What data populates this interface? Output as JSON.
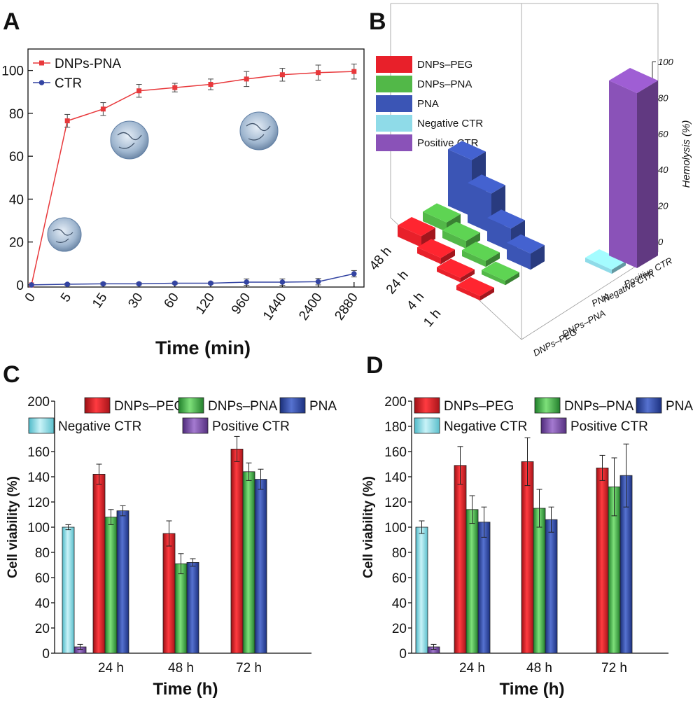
{
  "panels": {
    "A": "A",
    "B": "B",
    "C": "C",
    "D": "D"
  },
  "chart_data": [
    {
      "panel": "A",
      "type": "line",
      "title": "",
      "xlabel": "Time (min)",
      "ylabel": "",
      "x": [
        "0",
        "5",
        "15",
        "30",
        "60",
        "120",
        "960",
        "1440",
        "2400",
        "2880"
      ],
      "ylim": [
        0,
        110
      ],
      "yticks": [
        0,
        20,
        40,
        60,
        80,
        100
      ],
      "legend_position": "top-left",
      "series": [
        {
          "name": "DNPs-PNA",
          "color": "#e8383b",
          "values": [
            0,
            76.5,
            82,
            90.5,
            92,
            93.5,
            96,
            98,
            99,
            99.5
          ],
          "errors": [
            0,
            3,
            3,
            3,
            2,
            2.5,
            3.5,
            3,
            3.5,
            3.5
          ]
        },
        {
          "name": "CTR",
          "color": "#3344a2",
          "values": [
            0,
            0.3,
            0.5,
            0.5,
            0.8,
            0.8,
            1.3,
            1.3,
            1.5,
            5.2
          ],
          "errors": [
            0,
            0.5,
            0.5,
            0.5,
            0.5,
            0.5,
            1.5,
            1.5,
            1.5,
            1.5
          ]
        }
      ]
    },
    {
      "panel": "B",
      "type": "bar3d",
      "title": "",
      "zlabel": "Hemolysis (%)",
      "zlim": [
        0,
        100
      ],
      "zticks": [
        0,
        20,
        40,
        60,
        80,
        100
      ],
      "time_labels": [
        "48 h",
        "24 h",
        "4 h",
        "1 h"
      ],
      "sample_labels": [
        "DNPs–PEG",
        "DNPs–PNA",
        "PNA",
        "Negative CTR",
        "Positive CTR"
      ],
      "legend": [
        {
          "name": "DNPs–PEG",
          "color": "#e8202a"
        },
        {
          "name": "DNPs–PNA",
          "color": "#52b848"
        },
        {
          "name": "PNA",
          "color": "#3b55b5"
        },
        {
          "name": "Negative CTR",
          "color": "#8fdbe8"
        },
        {
          "name": "Positive CTR",
          "color": "#8a52b8"
        }
      ],
      "series": [
        {
          "name": "DNPs–PEG",
          "values_by_time": {
            "48 h": 5,
            "24 h": 2,
            "4 h": 1,
            "1 h": 1
          }
        },
        {
          "name": "DNPs–PNA",
          "values_by_time": {
            "48 h": 4,
            "24 h": 3,
            "4 h": 2,
            "1 h": 1
          }
        },
        {
          "name": "PNA",
          "values_by_time": {
            "48 h": 32,
            "24 h": 22,
            "4 h": 12,
            "1 h": 8
          }
        },
        {
          "name": "Negative CTR",
          "value": 1
        },
        {
          "name": "Positive CTR",
          "value": 100
        }
      ]
    },
    {
      "panel": "C",
      "type": "bar",
      "title": "",
      "xlabel": "Time (h)",
      "ylabel": "Cell viability (%)",
      "ylim": [
        0,
        200
      ],
      "yticks": [
        0,
        20,
        40,
        60,
        80,
        100,
        120,
        140,
        160,
        180,
        200
      ],
      "categories": [
        "24 h",
        "48 h",
        "72 h"
      ],
      "controls": [
        {
          "name": "Negative CTR",
          "color": "#7fd3df",
          "value": 100,
          "error": 2
        },
        {
          "name": "Positive CTR",
          "color": "#7b4fae",
          "value": 5,
          "error": 2
        }
      ],
      "series": [
        {
          "name": "DNPs–PEG",
          "color": "#e41e26",
          "values": [
            142,
            95,
            162
          ],
          "errors": [
            8,
            10,
            10
          ]
        },
        {
          "name": "DNPs–PNA",
          "color": "#3fb04a",
          "values": [
            108,
            71,
            144
          ],
          "errors": [
            6,
            8,
            7
          ]
        },
        {
          "name": "PNA",
          "color": "#2e4aa6",
          "values": [
            113,
            72,
            138
          ],
          "errors": [
            4,
            3,
            8
          ]
        }
      ]
    },
    {
      "panel": "D",
      "type": "bar",
      "title": "",
      "xlabel": "Time (h)",
      "ylabel": "Cell viability (%)",
      "ylim": [
        0,
        200
      ],
      "yticks": [
        0,
        20,
        40,
        60,
        80,
        100,
        120,
        140,
        160,
        180,
        200
      ],
      "categories": [
        "24 h",
        "48 h",
        "72 h"
      ],
      "controls": [
        {
          "name": "Negative CTR",
          "color": "#7fd3df",
          "value": 100,
          "error": 5
        },
        {
          "name": "Positive CTR",
          "color": "#7b4fae",
          "value": 5,
          "error": 2
        }
      ],
      "series": [
        {
          "name": "DNPs–PEG",
          "color": "#e41e26",
          "values": [
            149,
            152,
            147
          ],
          "errors": [
            15,
            19,
            10
          ]
        },
        {
          "name": "DNPs–PNA",
          "color": "#3fb04a",
          "values": [
            114,
            115,
            132
          ],
          "errors": [
            11,
            15,
            23
          ]
        },
        {
          "name": "PNA",
          "color": "#2e4aa6",
          "values": [
            104,
            106,
            141
          ],
          "errors": [
            12,
            10,
            25
          ]
        }
      ]
    }
  ]
}
